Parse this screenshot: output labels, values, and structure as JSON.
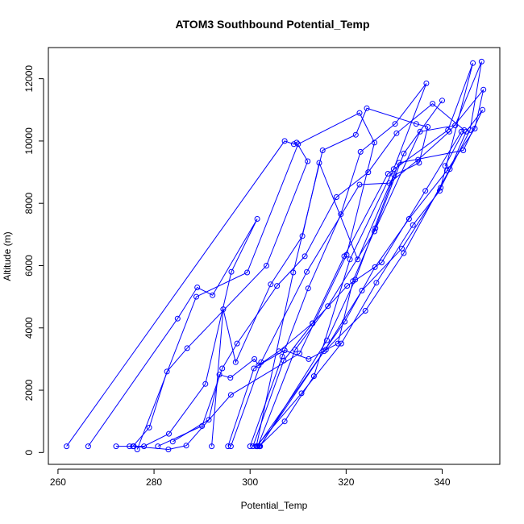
{
  "chart_data": {
    "type": "scatter",
    "title": "ATOM3 Southbound Potential_Temp",
    "xlabel": "Potential_Temp",
    "ylabel": "Altitude (m)",
    "xlim": [
      258,
      352
    ],
    "ylim": [
      -380,
      13000
    ],
    "x_ticks": [
      260,
      280,
      300,
      320,
      340
    ],
    "y_ticks": [
      0,
      2000,
      4000,
      6000,
      8000,
      10000,
      12000
    ],
    "grid": false,
    "legend": "none",
    "series_color": "#0000ff",
    "series": [
      {
        "x": [
          261.8,
          307.2,
          309.1,
          309.7,
          312.0,
          303.4,
          286.9,
          282.7,
          279.0,
          275.6,
          272.1
        ],
        "y": [
          200,
          10000,
          9900,
          9950,
          9350,
          6000,
          3350,
          2600,
          800,
          200,
          200
        ]
      },
      {
        "x": [
          266.3,
          284.9,
          289.0,
          292.2,
          301.5,
          296.1,
          290.7,
          283.1,
          277.9,
          274.9
        ],
        "y": [
          200,
          4300,
          5300,
          5050,
          7500,
          5800,
          2200,
          600,
          200,
          200
        ]
      },
      {
        "x": [
          276.5,
          288.8,
          299.4,
          310.0,
          322.8,
          325.9,
          320.1,
          310.3,
          296.0,
          286.7,
          283.0,
          275.8
        ],
        "y": [
          100,
          5000,
          5780,
          9900,
          10900,
          9950,
          6350,
          3180,
          1850,
          220,
          100,
          200
        ]
      },
      {
        "x": [
          300.0,
          306.7,
          312.1,
          318.9,
          323.0,
          330.2,
          336.7,
          329.9,
          320.8,
          313.3,
          307.2,
          301.9
        ],
        "y": [
          200,
          3080,
          5270,
          7650,
          9650,
          10550,
          11850,
          9100,
          6200,
          2450,
          1000,
          200
        ]
      },
      {
        "x": [
          301.3,
          309.0,
          315.1,
          322.0,
          324.3,
          334.6,
          337.0,
          335.2,
          330.0,
          321.9,
          316.0,
          302.1
        ],
        "y": [
          200,
          5780,
          9700,
          10200,
          11050,
          10550,
          10450,
          9300,
          8900,
          5550,
          3600,
          200
        ]
      },
      {
        "x": [
          300.6,
          307.0,
          313.0,
          319.6,
          328.7,
          341.2,
          346.4,
          339.5,
          333.9,
          326.3,
          319.0,
          310.7,
          301.3
        ],
        "y": [
          200,
          2950,
          4150,
          6300,
          8950,
          10350,
          12500,
          8400,
          7300,
          5450,
          3500,
          1900,
          200
        ]
      },
      {
        "x": [
          301.6,
          309.4,
          316.2,
          325.9,
          335.4,
          342.7,
          348.2,
          345.8,
          339.7,
          331.6,
          323.3,
          315.4,
          302.0
        ],
        "y": [
          200,
          3300,
          4700,
          7100,
          10300,
          10500,
          12550,
          10350,
          8500,
          6550,
          5200,
          3250,
          200
        ]
      },
      {
        "x": [
          296.0,
          302.3,
          311.8,
          322.8,
          329.0,
          335.0,
          341.5,
          348.6,
          346.8,
          341.0,
          333.1,
          326.0,
          319.7,
          301.5
        ],
        "y": [
          200,
          2900,
          5800,
          8600,
          8650,
          9400,
          10300,
          11650,
          10400,
          9050,
          7500,
          5950,
          4200,
          200
        ]
      },
      {
        "x": [
          292.0,
          294.4,
          297.0,
          304.3,
          310.9,
          314.4,
          322.4,
          331.0,
          344.4,
          348.4,
          345.0,
          341.6,
          332.0,
          324.0,
          315.8
        ],
        "y": [
          200,
          4600,
          2900,
          5400,
          6950,
          9300,
          6200,
          9300,
          9700,
          11000,
          10300,
          9100,
          6400,
          4550,
          3300
        ]
      },
      {
        "x": [
          280.8,
          290.0,
          294.2,
          297.3,
          305.6,
          311.4,
          318.0,
          324.6,
          330.5,
          338.0,
          344.6,
          340.6
        ],
        "y": [
          200,
          850,
          2700,
          3500,
          5350,
          6300,
          8200,
          9000,
          10250,
          11200,
          10350,
          9200
        ]
      },
      {
        "x": [
          283.9,
          291.4,
          293.6,
          295.9,
          300.9,
          301.8,
          307.2,
          312.2,
          318.3,
          321.4,
          326.1,
          332.0,
          340.0
        ],
        "y": [
          350,
          1050,
          2500,
          2400,
          3000,
          2800,
          3280,
          3000,
          3500,
          5500,
          7200,
          9600,
          11300
        ]
      },
      {
        "x": [
          295.4,
          300.8,
          306.0,
          313.0,
          320.2,
          327.4,
          336.5,
          344.0
        ],
        "y": [
          200,
          2700,
          3250,
          4150,
          5350,
          6100,
          8400,
          10300
        ]
      }
    ]
  }
}
